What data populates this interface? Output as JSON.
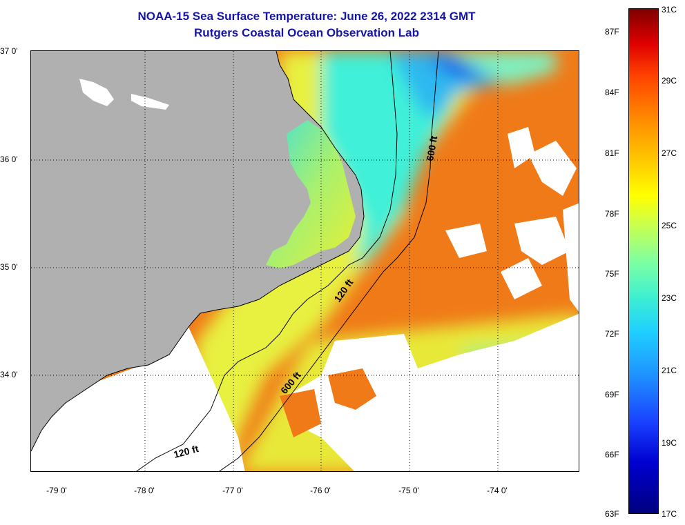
{
  "title": {
    "line1": "NOAA-15 Sea Surface Temperature:  June 26, 2022 2314 GMT",
    "line2": "Rutgers Coastal Ocean Observation Lab"
  },
  "axes": {
    "lon_labels": [
      "-79 0'",
      "-78 0'",
      "-77 0'",
      "-76 0'",
      "-75 0'",
      "-74 0'"
    ],
    "lat_labels": [
      "37 0'",
      "36 0'",
      "35 0'",
      "34 0'"
    ]
  },
  "isobaths": {
    "shallow_label": "120 ft",
    "deep_label": "600 ft"
  },
  "colorbar": {
    "fahrenheit": [
      "87F",
      "84F",
      "81F",
      "78F",
      "75F",
      "72F",
      "69F",
      "66F",
      "63F"
    ],
    "celsius": [
      "31C",
      "29C",
      "27C",
      "25C",
      "23C",
      "21C",
      "19C",
      "17C"
    ]
  },
  "colors": {
    "land": "#b0b0b0",
    "cloud": "#ffffff",
    "title": "#1515a8",
    "warm": "#f07a18",
    "cool": "#3fe8d8",
    "cold": "#1850e0"
  }
}
